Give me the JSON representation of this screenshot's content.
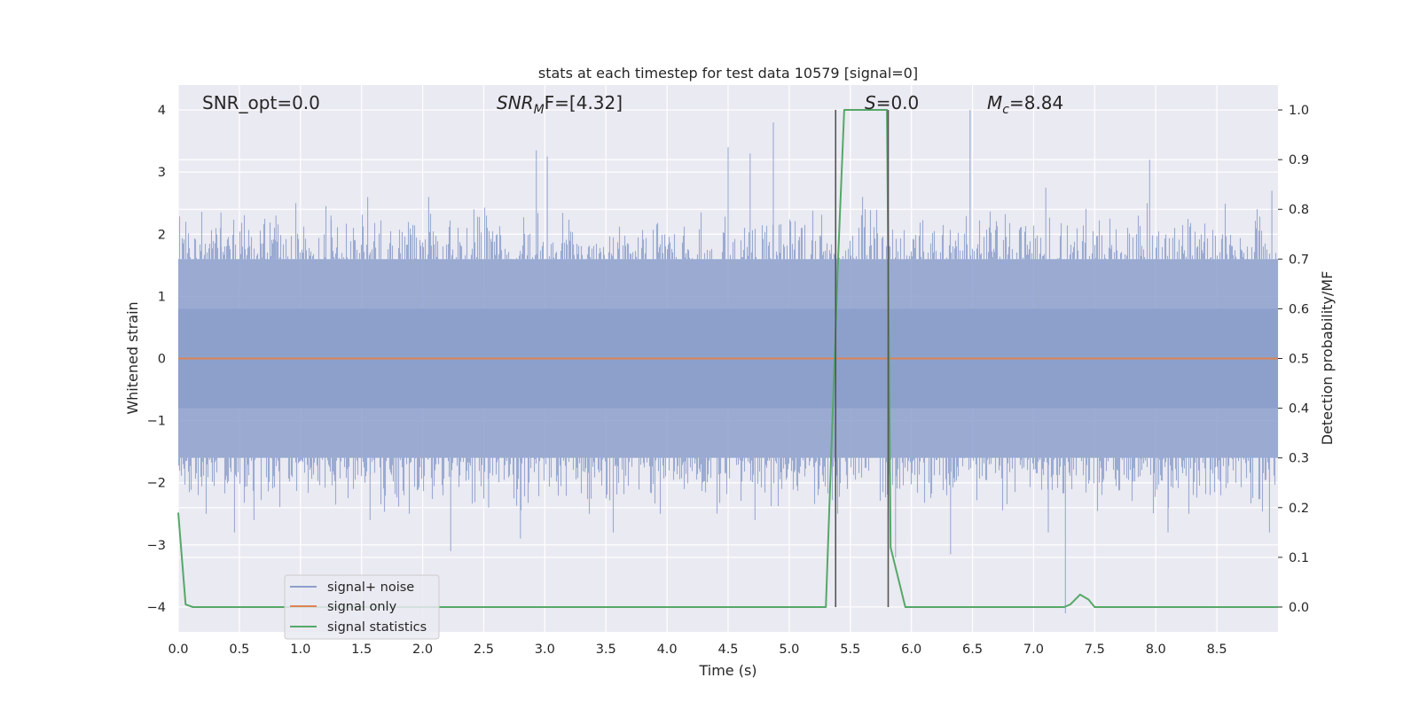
{
  "chart_data": {
    "type": "line",
    "title": "stats at each timestep for test data 10579 [signal=0]",
    "xlabel": "Time (s)",
    "ylabel_left": "Whitened strain",
    "ylabel_right": "Detection probability/MF",
    "xlim": [
      0.0,
      9.0
    ],
    "ylim_left": [
      -4.4,
      4.4
    ],
    "ylim_right": [
      -0.05,
      1.05
    ],
    "x_ticks": [
      "0.0",
      "0.5",
      "1.0",
      "1.5",
      "2.0",
      "2.5",
      "3.0",
      "3.5",
      "4.0",
      "4.5",
      "5.0",
      "5.5",
      "6.0",
      "6.5",
      "7.0",
      "7.5",
      "8.0",
      "8.5"
    ],
    "y_left_ticks": [
      "4",
      "3",
      "2",
      "1",
      "0",
      "−1",
      "−2",
      "−3",
      "−4"
    ],
    "y_right_ticks": [
      "1.0",
      "0.9",
      "0.8",
      "0.7",
      "0.6",
      "0.5",
      "0.4",
      "0.3",
      "0.2",
      "0.1",
      "0.0"
    ],
    "grid": true,
    "annotations": {
      "snr_opt": "SNR_opt=0.0",
      "snr_mf_main": "SNR",
      "snr_mf_sub": "M",
      "snr_mf_tail": "F=[4.32]",
      "s_main": "S",
      "s_tail": "=0.0",
      "mc_main": "M",
      "mc_sub": "c",
      "mc_tail": "=8.84"
    },
    "legend": {
      "placement": "lower-left",
      "entries": [
        "signal+ noise",
        "signal only",
        "signal statistics"
      ]
    },
    "vertical_markers": [
      5.38,
      5.81
    ],
    "series": [
      {
        "name": "signal+ noise",
        "axis": "left",
        "color": "#8c9fcb",
        "kind": "noise",
        "typical_envelope": 1.6,
        "peaks": [
          {
            "x": 0.35,
            "y": 2.35
          },
          {
            "x": 0.8,
            "y": 2.3
          },
          {
            "x": 1.25,
            "y": 2.3
          },
          {
            "x": 1.55,
            "y": 2.6
          },
          {
            "x": 2.05,
            "y": 2.6
          },
          {
            "x": 2.42,
            "y": 2.4
          },
          {
            "x": 2.93,
            "y": 3.35
          },
          {
            "x": 3.02,
            "y": 3.25
          },
          {
            "x": 4.5,
            "y": 3.4
          },
          {
            "x": 4.68,
            "y": 3.3
          },
          {
            "x": 4.87,
            "y": 3.8
          },
          {
            "x": 5.6,
            "y": 2.6
          },
          {
            "x": 6.48,
            "y": 4.0
          },
          {
            "x": 7.1,
            "y": 2.75
          },
          {
            "x": 7.95,
            "y": 3.2
          },
          {
            "x": 8.95,
            "y": 2.7
          }
        ],
        "troughs": [
          {
            "x": 0.46,
            "y": -2.8
          },
          {
            "x": 0.62,
            "y": -2.6
          },
          {
            "x": 1.57,
            "y": -2.6
          },
          {
            "x": 2.23,
            "y": -3.1
          },
          {
            "x": 2.54,
            "y": -2.4
          },
          {
            "x": 2.8,
            "y": -2.9
          },
          {
            "x": 3.56,
            "y": -2.8
          },
          {
            "x": 4.72,
            "y": -2.6
          },
          {
            "x": 5.87,
            "y": -3.2
          },
          {
            "x": 6.32,
            "y": -3.15
          },
          {
            "x": 7.12,
            "y": -2.8
          },
          {
            "x": 7.26,
            "y": -4.1
          },
          {
            "x": 8.1,
            "y": -2.8
          },
          {
            "x": 8.93,
            "y": -2.8
          }
        ]
      },
      {
        "name": "signal only",
        "axis": "left",
        "color": "#dd8452",
        "x": [
          0.0,
          9.0
        ],
        "y": [
          0.0,
          0.0
        ]
      },
      {
        "name": "signal statistics",
        "axis": "right",
        "color": "#55a868",
        "x": [
          0.0,
          0.06,
          0.12,
          1.0,
          2.0,
          3.0,
          4.0,
          5.0,
          5.3,
          5.4,
          5.45,
          5.8,
          5.83,
          5.95,
          6.5,
          7.0,
          7.25,
          7.3,
          7.38,
          7.45,
          7.5,
          8.0,
          9.0
        ],
        "y": [
          0.19,
          0.005,
          0.0,
          0.0,
          0.0,
          0.0,
          0.0,
          0.0,
          0.0,
          0.7,
          1.0,
          1.0,
          0.12,
          0.0,
          0.0,
          0.0,
          0.0,
          0.005,
          0.025,
          0.015,
          0.0,
          0.0,
          0.0
        ]
      }
    ]
  }
}
